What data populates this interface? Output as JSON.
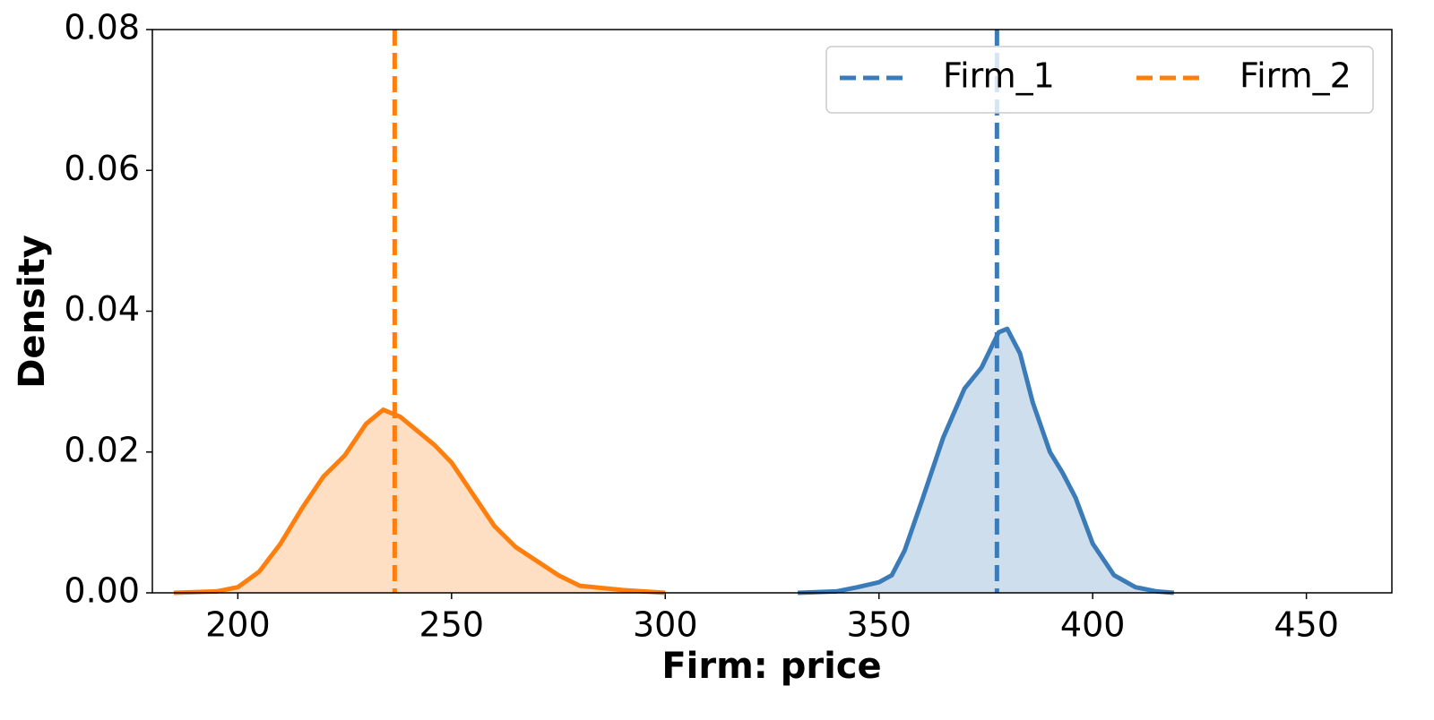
{
  "chart_data": {
    "type": "kde",
    "xlabel": "Firm: price",
    "ylabel": "Density",
    "xlim": [
      180,
      470
    ],
    "ylim": [
      0,
      0.08
    ],
    "xticks": [
      200,
      250,
      300,
      350,
      400,
      450
    ],
    "yticks": [
      {
        "value": 0,
        "label": "0.00"
      },
      {
        "value": 0.02,
        "label": "0.02"
      },
      {
        "value": 0.04,
        "label": "0.04"
      },
      {
        "value": 0.06,
        "label": "0.06"
      },
      {
        "value": 0.08,
        "label": "0.08"
      }
    ],
    "legend": "upper right",
    "series": [
      {
        "name": "Firm_1",
        "color": "#3a7bb8",
        "vline": 377.6,
        "x": [
          331,
          340,
          345,
          350,
          353,
          356,
          360,
          365,
          370,
          374,
          378,
          380,
          383,
          386,
          390,
          393,
          396,
          400,
          405,
          410,
          415,
          419
        ],
        "values": [
          0,
          0.0002,
          0.0008,
          0.0015,
          0.0025,
          0.006,
          0.013,
          0.022,
          0.029,
          0.032,
          0.037,
          0.0375,
          0.034,
          0.027,
          0.02,
          0.017,
          0.0135,
          0.007,
          0.0025,
          0.0008,
          0.0002,
          0
        ]
      },
      {
        "name": "Firm_2",
        "color": "#ff7f0e",
        "vline": 236.7,
        "x": [
          185,
          195,
          200,
          205,
          210,
          215,
          220,
          225,
          230,
          234,
          238,
          242,
          246,
          250,
          255,
          260,
          265,
          270,
          275,
          280,
          290,
          300
        ],
        "values": [
          0,
          0.0002,
          0.0008,
          0.003,
          0.007,
          0.012,
          0.0165,
          0.0195,
          0.024,
          0.026,
          0.025,
          0.023,
          0.021,
          0.0185,
          0.014,
          0.0095,
          0.0065,
          0.0045,
          0.0025,
          0.001,
          0.0004,
          0
        ]
      }
    ]
  }
}
